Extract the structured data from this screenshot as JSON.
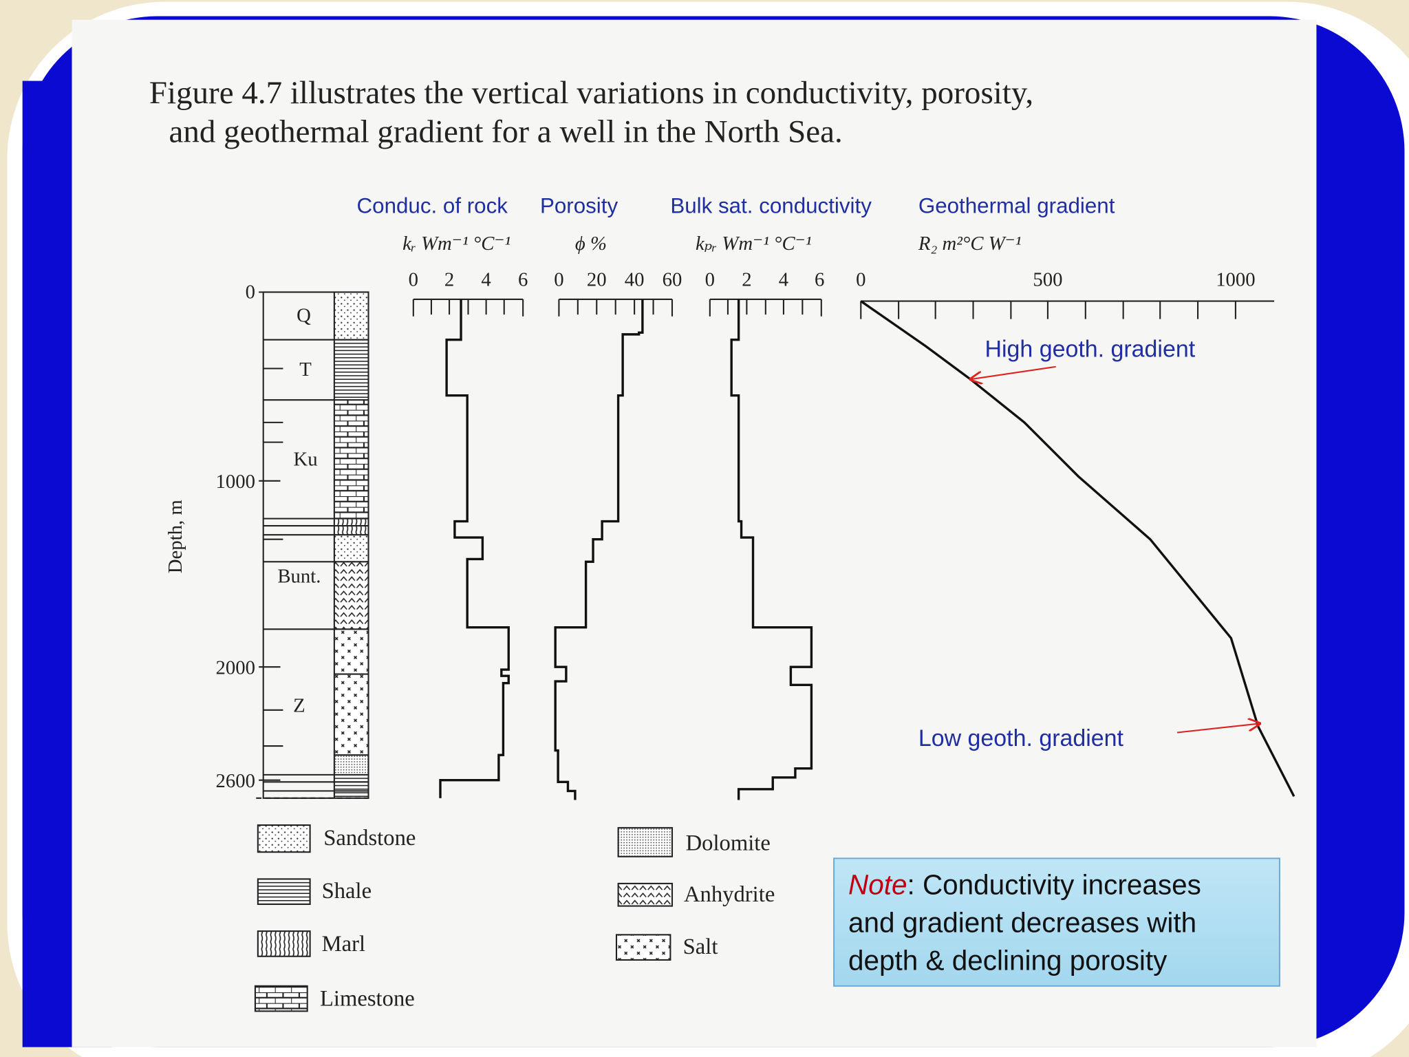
{
  "caption": {
    "lines": [
      "Figure 4.7 illustrates the vertical variations in conductivity, porosity,",
      "and geothermal gradient for a well in the North Sea."
    ]
  },
  "panels": [
    {
      "title": "Conduc. of rock",
      "unit": "kᵣ  Wm⁻¹ °C⁻¹",
      "ticks": [
        0,
        2,
        4,
        6
      ]
    },
    {
      "title": "Porosity",
      "unit": "ϕ   %",
      "ticks": [
        0,
        20,
        40,
        60
      ]
    },
    {
      "title": "Bulk sat. conductivity",
      "unit": "kₚᵣ  Wm⁻¹ °C⁻¹",
      "ticks": [
        0,
        2,
        4,
        6
      ]
    },
    {
      "title": "Geothermal gradient",
      "unit": "R₂   m²°C  W⁻¹",
      "ticks": [
        0,
        500,
        1000
      ]
    }
  ],
  "depth_axis": {
    "label": "Depth, m",
    "ticks": [
      0,
      1000,
      2000,
      2600
    ]
  },
  "strata": [
    "Q",
    "T",
    "Ku",
    "Bunt.",
    "Z"
  ],
  "legend": [
    "Sandstone",
    "Shale",
    "Marl",
    "Limestone",
    "Dolomite",
    "Anhydrite",
    "Salt"
  ],
  "annotations": {
    "high": "High geoth. gradient",
    "low": "Low geoth. gradient"
  },
  "note": {
    "emphasis": "Note",
    "text": [
      ": Conductivity increases",
      "and gradient decreases with",
      "depth & declining porosity"
    ]
  }
}
